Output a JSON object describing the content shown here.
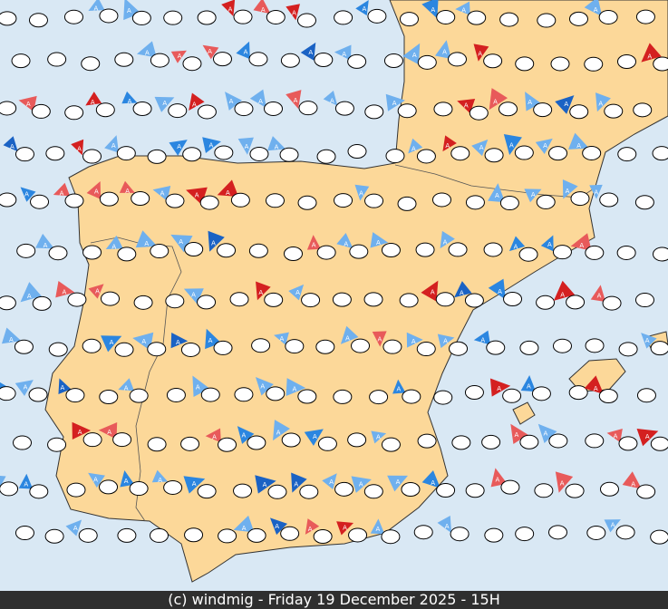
{
  "map": {
    "arrow_label": "A"
  },
  "footer": {
    "credit": "(c) windmig - Friday 19 December 2025 - 15H"
  }
}
